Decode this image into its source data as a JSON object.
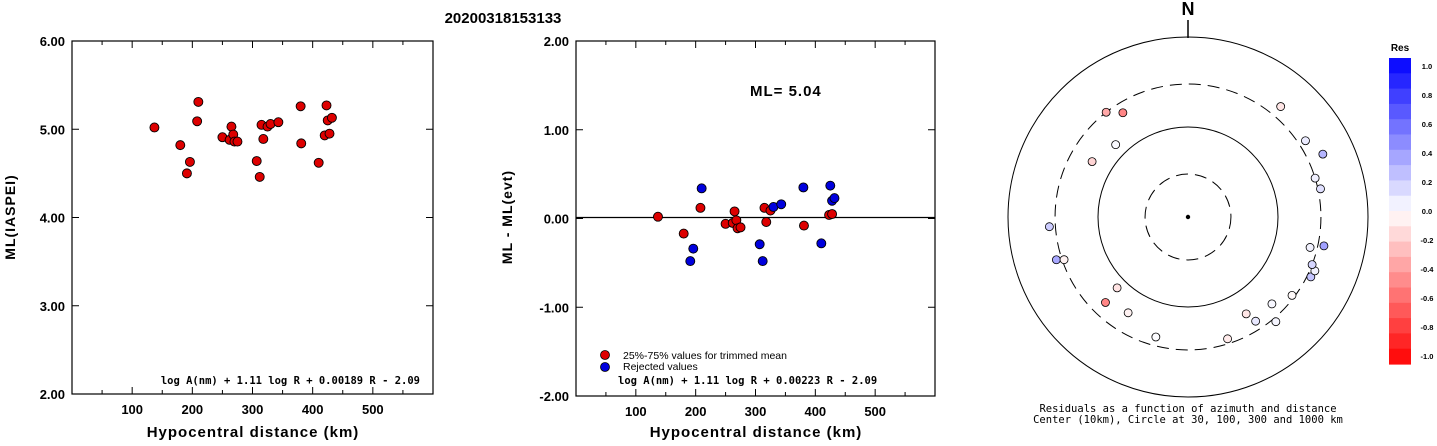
{
  "title": "20200318153133",
  "chart_data": [
    {
      "type": "scatter",
      "xlabel": "Hypocentral distance (km)",
      "ylabel": "ML(IASPEI)",
      "xlim": [
        0,
        600
      ],
      "ylim": [
        2.0,
        6.0
      ],
      "x_ticks": [
        "100",
        "200",
        "300",
        "400",
        "500"
      ],
      "y_ticks": [
        "2.00",
        "3.00",
        "4.00",
        "5.00",
        "6.00"
      ],
      "formula": "log A(nm) + 1.11 log R + 0.00189 R - 2.09",
      "series": [
        {
          "color": "#dd0000",
          "points": [
            [
              137,
              5.02
            ],
            [
              180,
              4.82
            ],
            [
              191,
              4.5
            ],
            [
              196,
              4.63
            ],
            [
              208,
              5.09
            ],
            [
              210,
              5.31
            ],
            [
              250,
              4.91
            ],
            [
              262,
              4.88
            ],
            [
              265,
              5.03
            ],
            [
              268,
              4.94
            ],
            [
              270,
              4.86
            ],
            [
              275,
              4.86
            ],
            [
              307,
              4.64
            ],
            [
              312,
              4.46
            ],
            [
              315,
              5.05
            ],
            [
              318,
              4.89
            ],
            [
              325,
              5.03
            ],
            [
              330,
              5.06
            ],
            [
              343,
              5.08
            ],
            [
              380,
              5.26
            ],
            [
              381,
              4.84
            ],
            [
              410,
              4.62
            ],
            [
              420,
              4.93
            ],
            [
              423,
              5.27
            ],
            [
              425,
              5.1
            ],
            [
              428,
              4.95
            ],
            [
              432,
              5.13
            ]
          ]
        }
      ]
    },
    {
      "type": "scatter",
      "xlabel": "Hypocentral distance (km)",
      "ylabel": "ML - ML(evt)",
      "xlim": [
        0,
        600
      ],
      "ylim": [
        -2.0,
        2.0
      ],
      "x_ticks": [
        "100",
        "200",
        "300",
        "400",
        "500"
      ],
      "y_ticks": [
        "-2.00",
        "-1.00",
        "0.00",
        "1.00",
        "2.00"
      ],
      "ml_label": "ML= 5.04",
      "formula": "log A(nm) + 1.11 log R + 0.00223 R - 2.09",
      "legend": {
        "position": "bottom-left",
        "items": [
          {
            "label": "25%-75% values for trimmed mean",
            "color": "#dd0000"
          },
          {
            "label": "Rejected values",
            "color": "#0000dd"
          }
        ]
      },
      "series": [
        {
          "name": "25%-75% values for trimmed mean",
          "color": "#dd0000",
          "points": [
            [
              137,
              0.02
            ],
            [
              180,
              -0.17
            ],
            [
              208,
              0.12
            ],
            [
              250,
              -0.06
            ],
            [
              262,
              -0.05
            ],
            [
              265,
              0.08
            ],
            [
              268,
              -0.02
            ],
            [
              270,
              -0.11
            ],
            [
              275,
              -0.1
            ],
            [
              315,
              0.12
            ],
            [
              318,
              -0.04
            ],
            [
              325,
              0.09
            ],
            [
              381,
              -0.08
            ],
            [
              423,
              0.04
            ],
            [
              428,
              0.05
            ]
          ]
        },
        {
          "name": "Rejected values",
          "color": "#0000dd",
          "points": [
            [
              191,
              -0.48
            ],
            [
              196,
              -0.34
            ],
            [
              210,
              0.34
            ],
            [
              307,
              -0.29
            ],
            [
              312,
              -0.48
            ],
            [
              330,
              0.13
            ],
            [
              343,
              0.16
            ],
            [
              380,
              0.35
            ],
            [
              410,
              -0.28
            ],
            [
              425,
              0.37
            ],
            [
              428,
              0.2
            ],
            [
              432,
              0.23
            ]
          ]
        }
      ]
    },
    {
      "type": "polar-scatter",
      "north_label": "N",
      "caption_line1": "Residuals as a function of azimuth and distance",
      "caption_line2": "Center (10km), Circle at 30, 100, 300 and 1000 km",
      "rings_km": [
        10,
        30,
        100,
        300,
        1000
      ],
      "points": [
        {
          "azimuth": 315,
          "distance": 137,
          "residual": 0.02
        },
        {
          "azimuth": 300,
          "distance": 170,
          "residual": -0.17
        },
        {
          "azimuth": 328,
          "distance": 232,
          "residual": -0.48
        },
        {
          "azimuth": 322,
          "distance": 300,
          "residual": -0.34
        },
        {
          "azimuth": 266,
          "distance": 350,
          "residual": 0.2
        },
        {
          "azimuth": 252,
          "distance": 345,
          "residual": 0.34
        },
        {
          "azimuth": 251,
          "distance": 286,
          "residual": -0.05
        },
        {
          "azimuth": 224,
          "distance": 209,
          "residual": -0.48
        },
        {
          "azimuth": 225,
          "distance": 130,
          "residual": -0.11
        },
        {
          "azimuth": 212,
          "distance": 180,
          "residual": -0.05
        },
        {
          "azimuth": 195,
          "distance": 240,
          "residual": 0.01
        },
        {
          "azimuth": 162,
          "distance": 265,
          "residual": -0.08
        },
        {
          "azimuth": 149,
          "distance": 180,
          "residual": -0.1
        },
        {
          "azimuth": 147,
          "distance": 240,
          "residual": 0.09
        },
        {
          "azimuth": 140,
          "distance": 330,
          "residual": 0.04
        },
        {
          "azimuth": 136,
          "distance": 220,
          "residual": 0.03
        },
        {
          "azimuth": 127,
          "distance": 280,
          "residual": -0.02
        },
        {
          "azimuth": 116,
          "distance": 330,
          "residual": 0.23
        },
        {
          "azimuth": 113,
          "distance": 340,
          "residual": 0.05
        },
        {
          "azimuth": 111,
          "distance": 300,
          "residual": 0.16
        },
        {
          "azimuth": 104,
          "distance": 250,
          "residual": 0.05
        },
        {
          "azimuth": 102,
          "distance": 350,
          "residual": 0.37
        },
        {
          "azimuth": 78,
          "distance": 320,
          "residual": 0.12
        },
        {
          "azimuth": 73,
          "distance": 300,
          "residual": 0.06
        },
        {
          "azimuth": 65,
          "distance": 450,
          "residual": 0.29
        },
        {
          "azimuth": 57,
          "distance": 360,
          "residual": 0.08
        },
        {
          "azimuth": 40,
          "distance": 400,
          "residual": -0.1
        }
      ],
      "colorbar": {
        "title": "Res",
        "labels": [
          "1.0",
          "0.8",
          "0.6",
          "0.4",
          "0.2",
          "0.0",
          "-0.2",
          "-0.4",
          "-0.6",
          "-0.8",
          "-1.0"
        ],
        "positive_color": "#0000ff",
        "negative_color": "#ff0000"
      }
    }
  ]
}
